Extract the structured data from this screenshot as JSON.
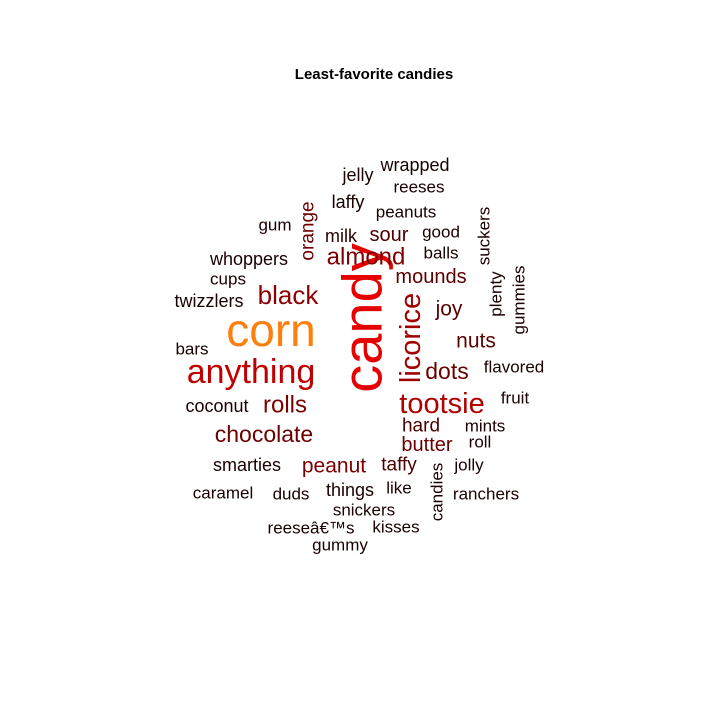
{
  "chart_data": {
    "type": "wordcloud",
    "title": "Least-favorite candies",
    "color_scale": [
      "#000000",
      "#5a0000",
      "#8b0000",
      "#e00000",
      "#ff7f00"
    ],
    "words": [
      {
        "text": "candy",
        "color": "#e60000",
        "rotated": true
      },
      {
        "text": "corn",
        "color": "#ff7f0e",
        "rotated": false
      },
      {
        "text": "anything",
        "color": "#c00000",
        "rotated": false
      },
      {
        "text": "tootsie",
        "color": "#b00000",
        "rotated": false
      },
      {
        "text": "licorice",
        "color": "#a00000",
        "rotated": true
      },
      {
        "text": "black",
        "color": "#8b0000",
        "rotated": false
      },
      {
        "text": "almond",
        "color": "#7a0000",
        "rotated": false
      },
      {
        "text": "rolls",
        "color": "#7a0000",
        "rotated": false
      },
      {
        "text": "chocolate",
        "color": "#6b0000",
        "rotated": false
      },
      {
        "text": "dots",
        "color": "#6b0000",
        "rotated": false
      },
      {
        "text": "peanut",
        "color": "#7a0000",
        "rotated": false
      },
      {
        "text": "butter",
        "color": "#6b0000",
        "rotated": false
      },
      {
        "text": "nuts",
        "color": "#5a0000",
        "rotated": false
      },
      {
        "text": "joy",
        "color": "#5a0000",
        "rotated": false
      },
      {
        "text": "mounds",
        "color": "#5a0000",
        "rotated": false
      },
      {
        "text": "sour",
        "color": "#4a0000",
        "rotated": false
      },
      {
        "text": "orange",
        "color": "#6b0000",
        "rotated": true
      },
      {
        "text": "taffy",
        "color": "#4a0000",
        "rotated": false
      },
      {
        "text": "hard",
        "color": "#4a0000",
        "rotated": false
      },
      {
        "text": "milk",
        "color": "#2a0000",
        "rotated": false
      },
      {
        "text": "wrapped",
        "color": "#1a0000",
        "rotated": false
      },
      {
        "text": "jelly",
        "color": "#1a0000",
        "rotated": false
      },
      {
        "text": "reeses",
        "color": "#1a0000",
        "rotated": false
      },
      {
        "text": "laffy",
        "color": "#1a0000",
        "rotated": false
      },
      {
        "text": "peanuts",
        "color": "#1a0000",
        "rotated": false
      },
      {
        "text": "gum",
        "color": "#1a0000",
        "rotated": false
      },
      {
        "text": "good",
        "color": "#1a0000",
        "rotated": false
      },
      {
        "text": "balls",
        "color": "#1a0000",
        "rotated": false
      },
      {
        "text": "suckers",
        "color": "#1a0000",
        "rotated": true
      },
      {
        "text": "whoppers",
        "color": "#1a0000",
        "rotated": false
      },
      {
        "text": "cups",
        "color": "#1a0000",
        "rotated": false
      },
      {
        "text": "plenty",
        "color": "#1a0000",
        "rotated": true
      },
      {
        "text": "gummies",
        "color": "#1a0000",
        "rotated": true
      },
      {
        "text": "twizzlers",
        "color": "#1a0000",
        "rotated": false
      },
      {
        "text": "bars",
        "color": "#1a0000",
        "rotated": false
      },
      {
        "text": "flavored",
        "color": "#1a0000",
        "rotated": false
      },
      {
        "text": "coconut",
        "color": "#1a0000",
        "rotated": false
      },
      {
        "text": "fruit",
        "color": "#1a0000",
        "rotated": false
      },
      {
        "text": "mints",
        "color": "#1a0000",
        "rotated": false
      },
      {
        "text": "roll",
        "color": "#1a0000",
        "rotated": false
      },
      {
        "text": "smarties",
        "color": "#1a0000",
        "rotated": false
      },
      {
        "text": "jolly",
        "color": "#1a0000",
        "rotated": false
      },
      {
        "text": "candies",
        "color": "#1a0000",
        "rotated": true
      },
      {
        "text": "caramel",
        "color": "#1a0000",
        "rotated": false
      },
      {
        "text": "duds",
        "color": "#1a0000",
        "rotated": false
      },
      {
        "text": "things",
        "color": "#1a0000",
        "rotated": false
      },
      {
        "text": "like",
        "color": "#1a0000",
        "rotated": false
      },
      {
        "text": "ranchers",
        "color": "#1a0000",
        "rotated": false
      },
      {
        "text": "snickers",
        "color": "#1a0000",
        "rotated": false
      },
      {
        "text": "reeseâ€™s",
        "color": "#1a0000",
        "rotated": false
      },
      {
        "text": "kisses",
        "color": "#1a0000",
        "rotated": false
      },
      {
        "text": "gummy",
        "color": "#1a0000",
        "rotated": false
      }
    ]
  }
}
